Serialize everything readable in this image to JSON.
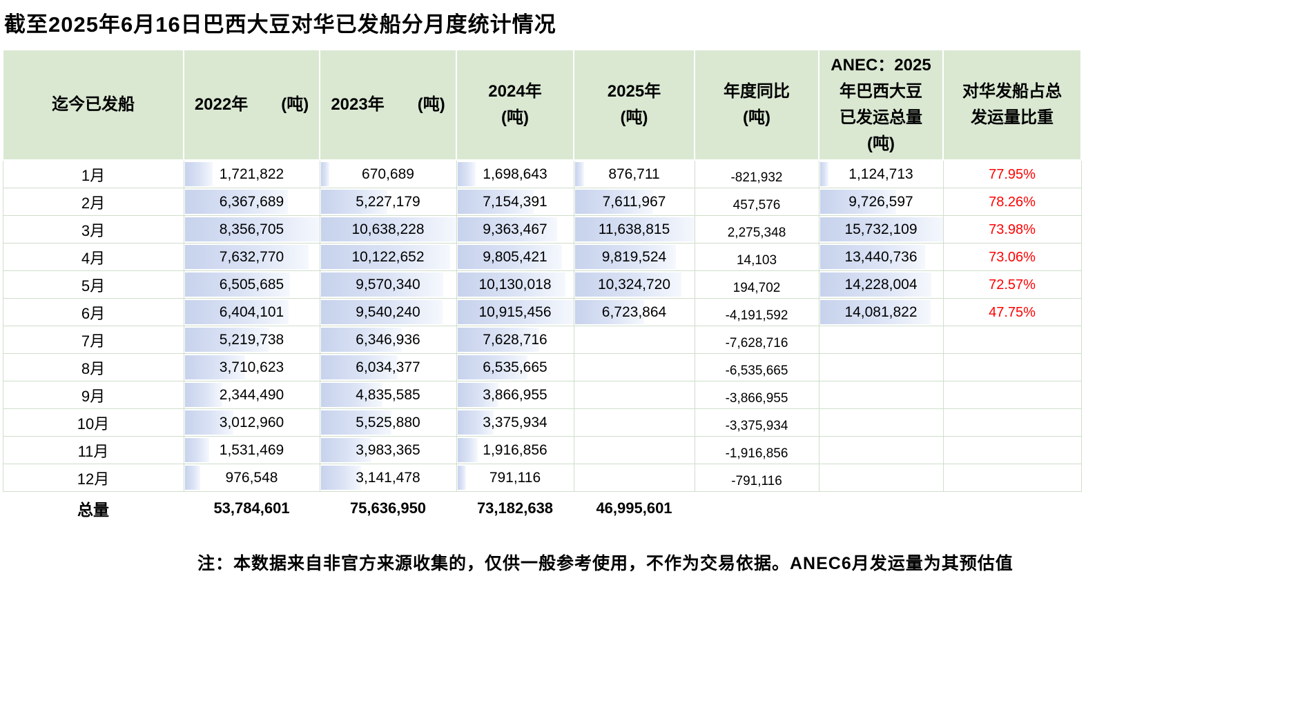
{
  "title": "截至2025年6月16日巴西大豆对华已发船分月度统计情况",
  "note": "注：本数据来自非官方来源收集的，仅供一般参考使用，不作为交易依据。ANEC6月发运量为其预估值",
  "colors": {
    "header_bg": "#dae8d2",
    "grid_border": "#cfdecb",
    "databar": "#c7d2ec",
    "databar_fade": "#f5f8fd",
    "percent_red": "#ff0000",
    "text": "#000000"
  },
  "chart_data": {
    "type": "table",
    "title": "截至2025年6月16日巴西大豆对华已发船分月度统计情况",
    "columns": [
      {
        "key": "month",
        "label": "迄今已发船",
        "bar": false
      },
      {
        "key": "y2022",
        "label": "2022年　　(吨)",
        "bar": true
      },
      {
        "key": "y2023",
        "label": "2023年　　(吨)",
        "bar": true
      },
      {
        "key": "y2024",
        "label": "2024年\n(吨)",
        "bar": true
      },
      {
        "key": "y2025",
        "label": "2025年\n(吨)",
        "bar": true
      },
      {
        "key": "yoy",
        "label": "年度同比\n(吨)",
        "bar": false
      },
      {
        "key": "anec",
        "label": "ANEC：2025\n年巴西大豆\n已发运总量\n(吨)",
        "bar": true
      },
      {
        "key": "share",
        "label": "对华发船占总\n发运量比重",
        "bar": false
      }
    ],
    "rows": [
      {
        "month": "1月",
        "y2022": "1,721,822",
        "y2023": "670,689",
        "y2024": "1,698,643",
        "y2025": "876,711",
        "yoy": "-821,932",
        "anec": "1,124,713",
        "share": "77.95%"
      },
      {
        "month": "2月",
        "y2022": "6,367,689",
        "y2023": "5,227,179",
        "y2024": "7,154,391",
        "y2025": "7,611,967",
        "yoy": "457,576",
        "anec": "9,726,597",
        "share": "78.26%"
      },
      {
        "month": "3月",
        "y2022": "8,356,705",
        "y2023": "10,638,228",
        "y2024": "9,363,467",
        "y2025": "11,638,815",
        "yoy": "2,275,348",
        "anec": "15,732,109",
        "share": "73.98%"
      },
      {
        "month": "4月",
        "y2022": "7,632,770",
        "y2023": "10,122,652",
        "y2024": "9,805,421",
        "y2025": "9,819,524",
        "yoy": "14,103",
        "anec": "13,440,736",
        "share": "73.06%"
      },
      {
        "month": "5月",
        "y2022": "6,505,685",
        "y2023": "9,570,340",
        "y2024": "10,130,018",
        "y2025": "10,324,720",
        "yoy": "194,702",
        "anec": "14,228,004",
        "share": "72.57%"
      },
      {
        "month": "6月",
        "y2022": "6,404,101",
        "y2023": "9,540,240",
        "y2024": "10,915,456",
        "y2025": "6,723,864",
        "yoy": "-4,191,592",
        "anec": "14,081,822",
        "share": "47.75%"
      },
      {
        "month": "7月",
        "y2022": "5,219,738",
        "y2023": "6,346,936",
        "y2024": "7,628,716",
        "y2025": "",
        "yoy": "-7,628,716",
        "anec": "",
        "share": ""
      },
      {
        "month": "8月",
        "y2022": "3,710,623",
        "y2023": "6,034,377",
        "y2024": "6,535,665",
        "y2025": "",
        "yoy": "-6,535,665",
        "anec": "",
        "share": ""
      },
      {
        "month": "9月",
        "y2022": "2,344,490",
        "y2023": "4,835,585",
        "y2024": "3,866,955",
        "y2025": "",
        "yoy": "-3,866,955",
        "anec": "",
        "share": ""
      },
      {
        "month": "10月",
        "y2022": "3,012,960",
        "y2023": "5,525,880",
        "y2024": "3,375,934",
        "y2025": "",
        "yoy": "-3,375,934",
        "anec": "",
        "share": ""
      },
      {
        "month": "11月",
        "y2022": "1,531,469",
        "y2023": "3,983,365",
        "y2024": "1,916,856",
        "y2025": "",
        "yoy": "-1,916,856",
        "anec": "",
        "share": ""
      },
      {
        "month": "12月",
        "y2022": "976,548",
        "y2023": "3,141,478",
        "y2024": "791,116",
        "y2025": "",
        "yoy": "-791,116",
        "anec": "",
        "share": ""
      }
    ],
    "totals": {
      "month": "总量",
      "y2022": "53,784,601",
      "y2023": "75,636,950",
      "y2024": "73,182,638",
      "y2025": "46,995,601",
      "yoy": "",
      "anec": "",
      "share": ""
    }
  }
}
